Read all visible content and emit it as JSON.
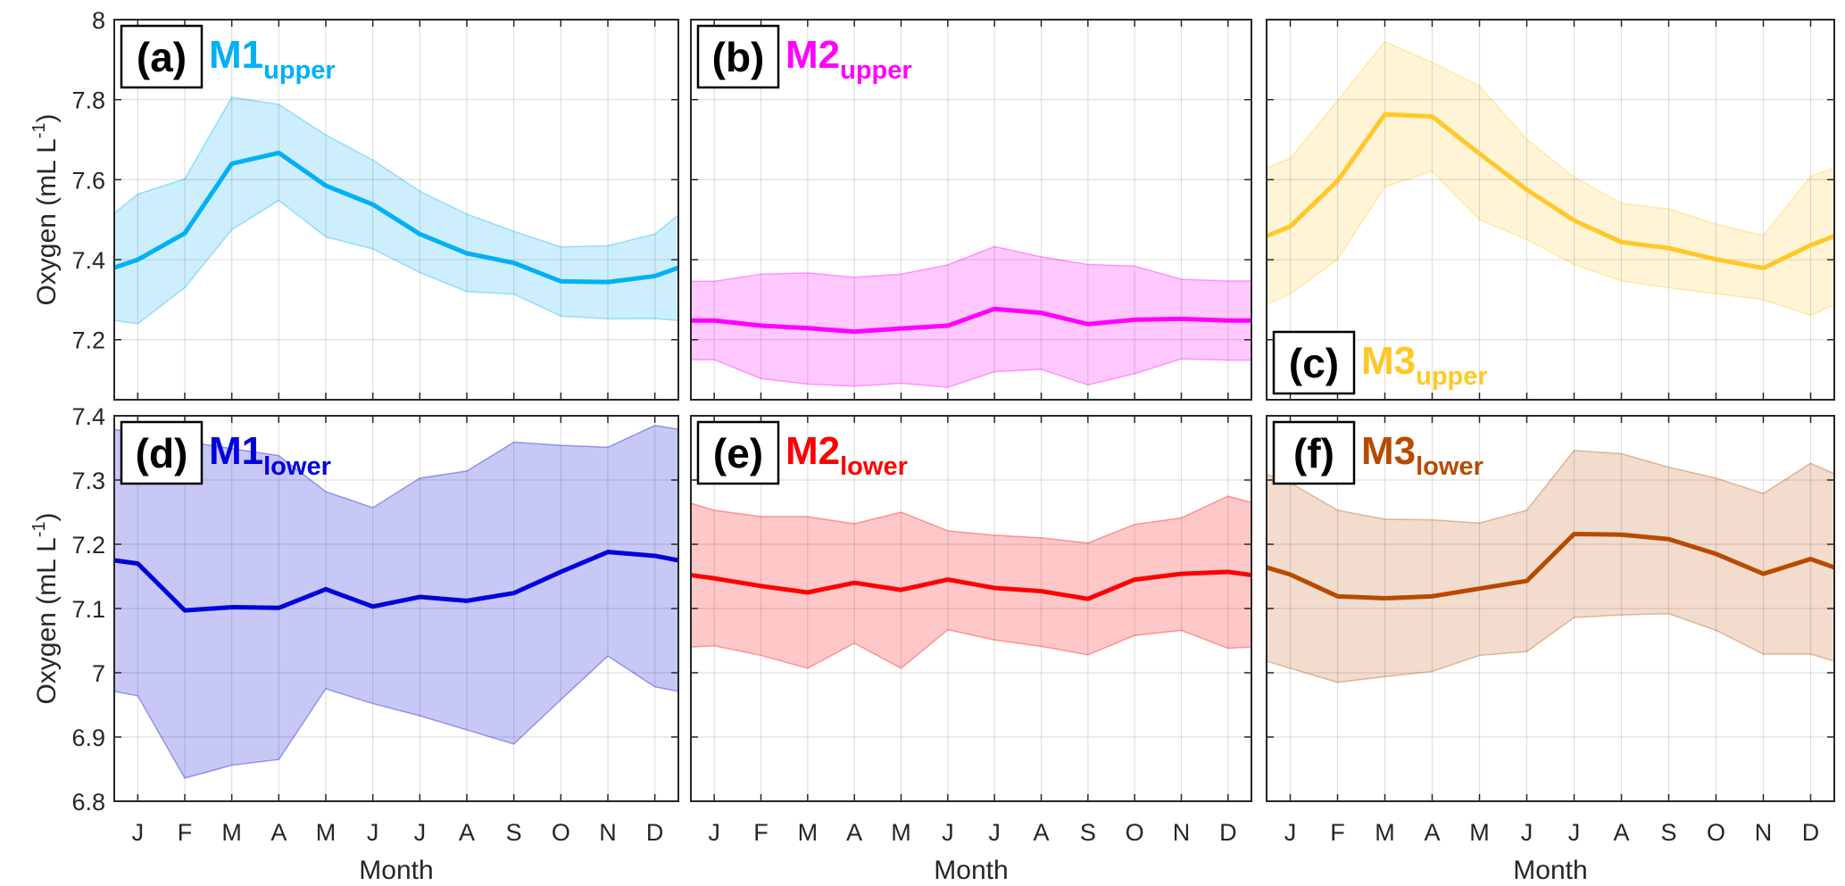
{
  "figure": {
    "xlabel": "Month",
    "ylabel_main": "Oxygen (mL L",
    "ylabel_sup": "-1",
    "ylabel_end": ")",
    "months": [
      "J",
      "F",
      "M",
      "A",
      "M",
      "J",
      "J",
      "A",
      "S",
      "O",
      "N",
      "D"
    ]
  },
  "chart_data": [
    {
      "type": "line",
      "panel": "(a)",
      "title": "M1",
      "subtitle": "upper",
      "color": "#00b0f6",
      "fill": "#cdeefc",
      "ylim": [
        7.05,
        8
      ],
      "yticks": [
        7.2,
        7.4,
        7.6,
        7.8,
        8
      ],
      "ytick_labels": [
        "7.2",
        "7.4",
        "7.6",
        "7.8",
        "8"
      ],
      "label_position": "top-left",
      "x": [
        0.5,
        1,
        2,
        3,
        4,
        5,
        6,
        7,
        8,
        9,
        10,
        11,
        12,
        12.5
      ],
      "mean": [
        7.38,
        7.4,
        7.466,
        7.64,
        7.667,
        7.585,
        7.538,
        7.464,
        7.416,
        7.392,
        7.346,
        7.344,
        7.359,
        7.38
      ],
      "upper": [
        7.516,
        7.564,
        7.602,
        7.806,
        7.788,
        7.712,
        7.649,
        7.571,
        7.514,
        7.471,
        7.432,
        7.435,
        7.464,
        7.512
      ],
      "lower": [
        7.248,
        7.24,
        7.33,
        7.475,
        7.548,
        7.457,
        7.427,
        7.368,
        7.32,
        7.314,
        7.259,
        7.252,
        7.253,
        7.248
      ]
    },
    {
      "type": "line",
      "panel": "(b)",
      "title": "M2",
      "subtitle": "upper",
      "color": "#ff00ff",
      "fill": "#ffc8ff",
      "ylim": [
        7.05,
        8
      ],
      "yticks": [
        7.2,
        7.4,
        7.6,
        7.8,
        8
      ],
      "ytick_labels": [],
      "label_position": "top-left",
      "x": [
        0.5,
        1,
        2,
        3,
        4,
        5,
        6,
        7,
        8,
        9,
        10,
        11,
        12,
        12.5
      ],
      "mean": [
        7.248,
        7.248,
        7.235,
        7.229,
        7.22,
        7.228,
        7.235,
        7.277,
        7.267,
        7.239,
        7.25,
        7.252,
        7.248,
        7.248
      ],
      "upper": [
        7.346,
        7.346,
        7.364,
        7.367,
        7.356,
        7.364,
        7.387,
        7.433,
        7.407,
        7.388,
        7.384,
        7.351,
        7.347,
        7.347
      ],
      "lower": [
        7.15,
        7.15,
        7.103,
        7.089,
        7.084,
        7.091,
        7.081,
        7.12,
        7.126,
        7.087,
        7.115,
        7.152,
        7.149,
        7.149
      ]
    },
    {
      "type": "line",
      "panel": "(c)",
      "title": "M3",
      "subtitle": "upper",
      "color": "#ffc828",
      "fill": "#fff4d6",
      "ylim": [
        7.05,
        8
      ],
      "yticks": [
        7.2,
        7.4,
        7.6,
        7.8,
        8
      ],
      "ytick_labels": [],
      "label_position": "bottom-left",
      "x": [
        0.5,
        1,
        2,
        3,
        4,
        5,
        6,
        7,
        8,
        9,
        10,
        11,
        12,
        12.5
      ],
      "mean": [
        7.459,
        7.483,
        7.597,
        7.763,
        7.758,
        7.665,
        7.575,
        7.498,
        7.444,
        7.429,
        7.401,
        7.379,
        7.436,
        7.459
      ],
      "upper": [
        7.63,
        7.653,
        7.797,
        7.945,
        7.893,
        7.834,
        7.701,
        7.606,
        7.541,
        7.527,
        7.489,
        7.46,
        7.608,
        7.63
      ],
      "lower": [
        7.289,
        7.314,
        7.401,
        7.582,
        7.621,
        7.5,
        7.451,
        7.388,
        7.347,
        7.33,
        7.315,
        7.3,
        7.261,
        7.287
      ]
    },
    {
      "type": "line",
      "panel": "(d)",
      "title": "M1",
      "subtitle": "lower",
      "color": "#0000dd",
      "fill": "#c8c8f7",
      "ylim": [
        6.8,
        7.4
      ],
      "yticks": [
        6.8,
        6.9,
        7.0,
        7.1,
        7.2,
        7.3,
        7.4
      ],
      "ytick_labels": [
        "6.8",
        "6.9",
        "7",
        "7.1",
        "7.2",
        "7.3",
        "7.4"
      ],
      "label_position": "top-left",
      "x": [
        0.5,
        1,
        2,
        3,
        4,
        5,
        6,
        7,
        8,
        9,
        10,
        11,
        12,
        12.5
      ],
      "mean": [
        7.175,
        7.17,
        7.097,
        7.102,
        7.101,
        7.13,
        7.103,
        7.118,
        7.112,
        7.124,
        7.157,
        7.188,
        7.182,
        7.175
      ],
      "upper": [
        7.379,
        7.372,
        7.36,
        7.349,
        7.338,
        7.282,
        7.257,
        7.303,
        7.314,
        7.359,
        7.354,
        7.351,
        7.385,
        7.379
      ],
      "lower": [
        6.971,
        6.964,
        6.836,
        6.856,
        6.865,
        6.975,
        6.952,
        6.933,
        6.911,
        6.889,
        6.958,
        7.026,
        6.978,
        6.971
      ]
    },
    {
      "type": "line",
      "panel": "(e)",
      "title": "M2",
      "subtitle": "lower",
      "color": "#ff0000",
      "fill": "#ffc8c8",
      "ylim": [
        6.8,
        7.4
      ],
      "yticks": [
        6.8,
        6.9,
        7.0,
        7.1,
        7.2,
        7.3,
        7.4
      ],
      "ytick_labels": [],
      "label_position": "top-left",
      "x": [
        0.5,
        1,
        2,
        3,
        4,
        5,
        6,
        7,
        8,
        9,
        10,
        11,
        12,
        12.5
      ],
      "mean": [
        7.152,
        7.147,
        7.135,
        7.125,
        7.14,
        7.129,
        7.145,
        7.132,
        7.127,
        7.115,
        7.145,
        7.154,
        7.157,
        7.152
      ],
      "upper": [
        7.264,
        7.253,
        7.243,
        7.243,
        7.232,
        7.25,
        7.221,
        7.214,
        7.21,
        7.202,
        7.231,
        7.241,
        7.275,
        7.265
      ],
      "lower": [
        7.04,
        7.042,
        7.027,
        7.007,
        7.046,
        7.007,
        7.067,
        7.051,
        7.041,
        7.028,
        7.058,
        7.066,
        7.038,
        7.04
      ]
    },
    {
      "type": "line",
      "panel": "(f)",
      "title": "M3",
      "subtitle": "lower",
      "color": "#b84a00",
      "fill": "#f2dccd",
      "ylim": [
        6.8,
        7.4
      ],
      "yticks": [
        6.8,
        6.9,
        7.0,
        7.1,
        7.2,
        7.3,
        7.4
      ],
      "ytick_labels": [],
      "label_position": "top-left",
      "x": [
        0.5,
        1,
        2,
        3,
        4,
        5,
        6,
        7,
        8,
        9,
        10,
        11,
        12,
        12.5
      ],
      "mean": [
        7.164,
        7.153,
        7.119,
        7.116,
        7.119,
        7.131,
        7.143,
        7.216,
        7.215,
        7.208,
        7.185,
        7.154,
        7.177,
        7.164
      ],
      "upper": [
        7.309,
        7.296,
        7.253,
        7.239,
        7.238,
        7.233,
        7.253,
        7.346,
        7.341,
        7.32,
        7.303,
        7.279,
        7.326,
        7.31
      ],
      "lower": [
        7.018,
        7.007,
        6.985,
        6.994,
        7.002,
        7.027,
        7.033,
        7.086,
        7.09,
        7.092,
        7.066,
        7.029,
        7.029,
        7.018
      ]
    }
  ]
}
